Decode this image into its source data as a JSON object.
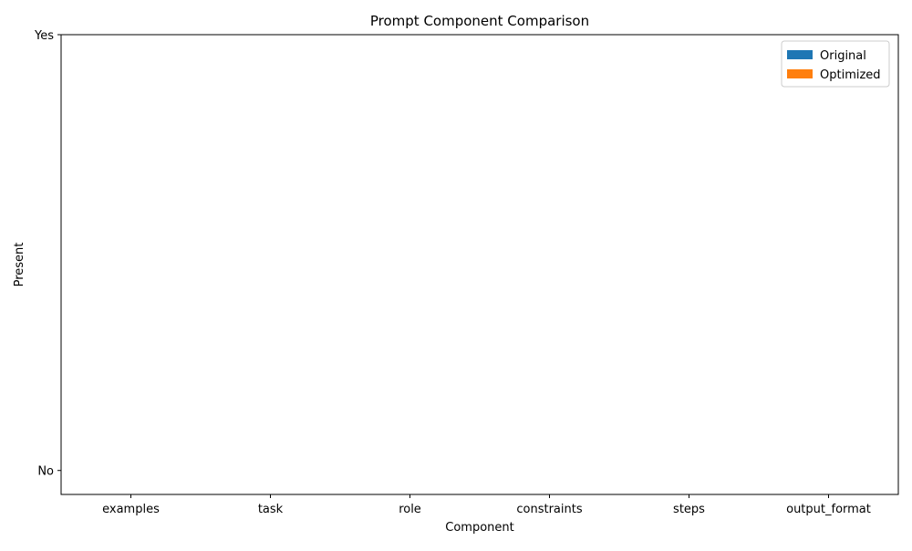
{
  "chart_data": {
    "type": "bar",
    "title": "Prompt Component Comparison",
    "xlabel": "Component",
    "ylabel": "Present",
    "categories": [
      "examples",
      "task",
      "role",
      "constraints",
      "steps",
      "output_format"
    ],
    "yticks": [
      {
        "value": 0,
        "label": "No"
      },
      {
        "value": 1,
        "label": "Yes"
      }
    ],
    "ylim": [
      -0.055,
      1.0
    ],
    "series": [
      {
        "name": "Original",
        "color": "#1f77b4",
        "values": [
          0,
          0,
          0,
          0,
          0,
          0
        ]
      },
      {
        "name": "Optimized",
        "color": "#ff7f0e",
        "values": [
          0,
          0,
          0,
          0,
          0,
          0
        ]
      }
    ],
    "legend_position": "top-right",
    "grid": false
  }
}
